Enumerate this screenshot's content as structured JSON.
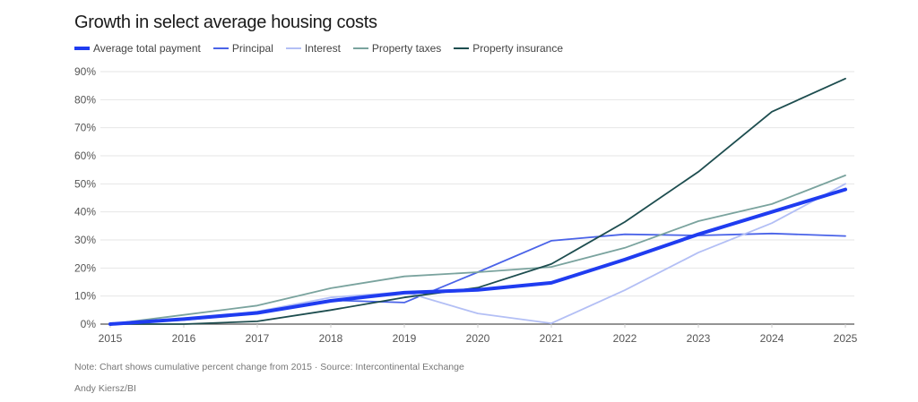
{
  "chart_data": {
    "type": "line",
    "title": "Growth in select average housing costs",
    "xlabel": "",
    "ylabel": "",
    "x": [
      "2015",
      "2016",
      "2017",
      "2018",
      "2019",
      "2020",
      "2021",
      "2022",
      "2023",
      "2024",
      "2025"
    ],
    "ylim": [
      0,
      90
    ],
    "yticks": [
      0,
      10,
      20,
      30,
      40,
      50,
      60,
      70,
      80,
      90
    ],
    "ytick_labels": [
      "0%",
      "10%",
      "20%",
      "30%",
      "40%",
      "50%",
      "60%",
      "70%",
      "80%",
      "90%"
    ],
    "grid": true,
    "legend_position": "top-left",
    "series": [
      {
        "name": "Average total payment",
        "color": "#1f3cf0",
        "emphasis": true,
        "values": [
          0,
          1.8,
          4.0,
          8.3,
          11.2,
          12.2,
          14.7,
          23.0,
          32.0,
          40.0,
          48.0
        ]
      },
      {
        "name": "Principal",
        "color": "#4a63e8",
        "values": [
          0,
          1.5,
          3.8,
          8.5,
          7.7,
          18.5,
          29.7,
          32.0,
          31.6,
          32.3,
          31.4
        ]
      },
      {
        "name": "Interest",
        "color": "#b3bff5",
        "values": [
          0,
          1.5,
          4.5,
          9.5,
          11.5,
          3.8,
          0.3,
          12.1,
          25.5,
          36.0,
          50.0
        ]
      },
      {
        "name": "Property taxes",
        "color": "#7aa39e",
        "values": [
          0,
          3.3,
          6.6,
          12.8,
          17.0,
          18.5,
          20.4,
          27.2,
          36.7,
          42.8,
          53.0
        ]
      },
      {
        "name": "Property insurance",
        "color": "#1d4d4f",
        "values": [
          0,
          0,
          1.0,
          5.0,
          9.5,
          13.0,
          21.4,
          36.4,
          54.3,
          75.7,
          87.5
        ]
      }
    ],
    "note": "Note: Chart shows cumulative percent change from 2015 · Source: Intercontinental Exchange",
    "credit": "Andy Kiersz/BI"
  }
}
